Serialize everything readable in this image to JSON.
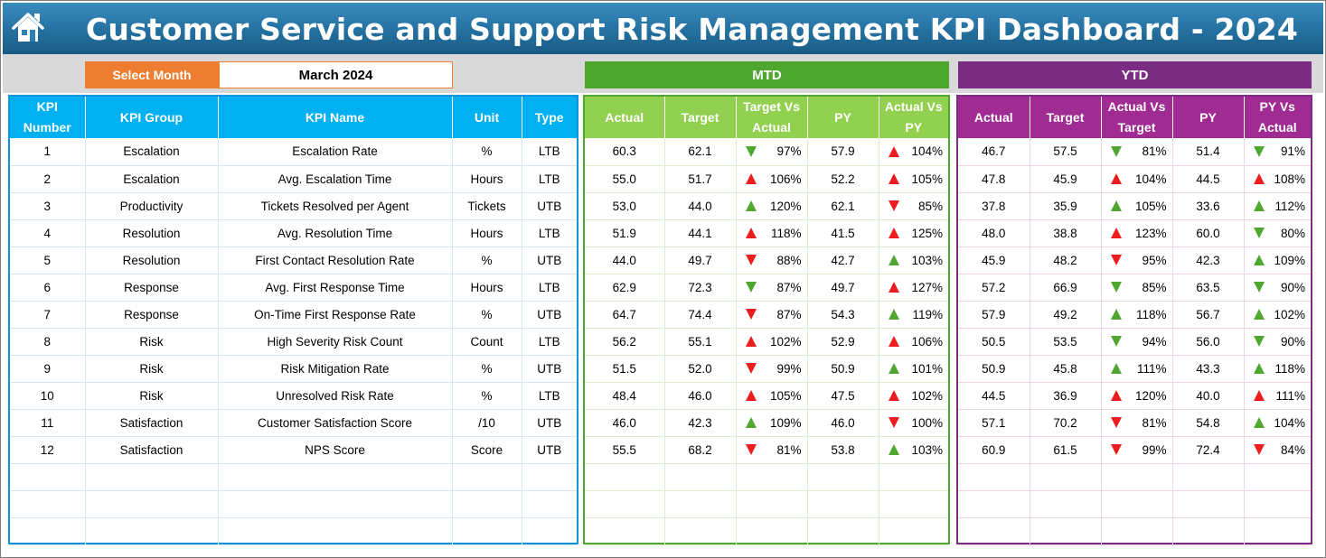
{
  "title": "Customer Service and Support Risk Management KPI Dashboard - 2024",
  "icons": {
    "home": "home-icon",
    "up": "triangle-up-icon",
    "down": "triangle-down-icon"
  },
  "colors": {
    "title_bar": "#24709f",
    "select_label": "#ed7d31",
    "kpi_header": "#00b0f0",
    "mtd_accent": "#4ea72e",
    "mtd_header": "#92d050",
    "ytd_accent": "#7b2d83",
    "ytd_header": "#a02b93",
    "indicator_red": "#ee1c1c",
    "indicator_green": "#4ea72e"
  },
  "controls": {
    "select_month_label": "Select Month",
    "month_value": "March 2024"
  },
  "sections": {
    "mtd": "MTD",
    "ytd": "YTD"
  },
  "kpi_headers": [
    "KPI Number",
    "KPI Group",
    "KPI Name",
    "Unit",
    "Type"
  ],
  "mtd_headers": [
    "Actual",
    "Target",
    "Target Vs Actual",
    "PY",
    "Actual Vs PY"
  ],
  "ytd_headers": [
    "Actual",
    "Target",
    "Actual Vs Target",
    "PY",
    "PY Vs Actual"
  ],
  "rows": [
    {
      "num": "1",
      "group": "Escalation",
      "name": "Escalation Rate",
      "unit": "%",
      "type": "LTB",
      "mtd": {
        "actual": "60.3",
        "target": "62.1",
        "tva": {
          "pct": "97%",
          "dir": "down",
          "good": true
        },
        "py": "57.9",
        "avp": {
          "pct": "104%",
          "dir": "up",
          "good": false
        }
      },
      "ytd": {
        "actual": "46.7",
        "target": "57.5",
        "avt": {
          "pct": "81%",
          "dir": "down",
          "good": true
        },
        "py": "51.4",
        "pva": {
          "pct": "91%",
          "dir": "down",
          "good": true
        }
      }
    },
    {
      "num": "2",
      "group": "Escalation",
      "name": "Avg. Escalation Time",
      "unit": "Hours",
      "type": "LTB",
      "mtd": {
        "actual": "55.0",
        "target": "51.7",
        "tva": {
          "pct": "106%",
          "dir": "up",
          "good": false
        },
        "py": "52.2",
        "avp": {
          "pct": "105%",
          "dir": "up",
          "good": false
        }
      },
      "ytd": {
        "actual": "47.8",
        "target": "45.9",
        "avt": {
          "pct": "104%",
          "dir": "up",
          "good": false
        },
        "py": "44.5",
        "pva": {
          "pct": "108%",
          "dir": "up",
          "good": false
        }
      }
    },
    {
      "num": "3",
      "group": "Productivity",
      "name": "Tickets Resolved per Agent",
      "unit": "Tickets",
      "type": "UTB",
      "mtd": {
        "actual": "53.0",
        "target": "44.0",
        "tva": {
          "pct": "120%",
          "dir": "up",
          "good": true
        },
        "py": "62.1",
        "avp": {
          "pct": "85%",
          "dir": "down",
          "good": false
        }
      },
      "ytd": {
        "actual": "37.8",
        "target": "35.9",
        "avt": {
          "pct": "105%",
          "dir": "up",
          "good": true
        },
        "py": "33.6",
        "pva": {
          "pct": "112%",
          "dir": "up",
          "good": true
        }
      }
    },
    {
      "num": "4",
      "group": "Resolution",
      "name": "Avg. Resolution Time",
      "unit": "Hours",
      "type": "LTB",
      "mtd": {
        "actual": "51.9",
        "target": "44.1",
        "tva": {
          "pct": "118%",
          "dir": "up",
          "good": false
        },
        "py": "41.5",
        "avp": {
          "pct": "125%",
          "dir": "up",
          "good": false
        }
      },
      "ytd": {
        "actual": "48.0",
        "target": "38.8",
        "avt": {
          "pct": "123%",
          "dir": "up",
          "good": false
        },
        "py": "60.0",
        "pva": {
          "pct": "80%",
          "dir": "down",
          "good": true
        }
      }
    },
    {
      "num": "5",
      "group": "Resolution",
      "name": "First Contact Resolution Rate",
      "unit": "%",
      "type": "UTB",
      "mtd": {
        "actual": "44.0",
        "target": "49.7",
        "tva": {
          "pct": "88%",
          "dir": "down",
          "good": false
        },
        "py": "42.7",
        "avp": {
          "pct": "103%",
          "dir": "up",
          "good": true
        }
      },
      "ytd": {
        "actual": "45.9",
        "target": "48.2",
        "avt": {
          "pct": "95%",
          "dir": "down",
          "good": false
        },
        "py": "42.3",
        "pva": {
          "pct": "109%",
          "dir": "up",
          "good": true
        }
      }
    },
    {
      "num": "6",
      "group": "Response",
      "name": "Avg. First Response Time",
      "unit": "Hours",
      "type": "LTB",
      "mtd": {
        "actual": "62.9",
        "target": "72.3",
        "tva": {
          "pct": "87%",
          "dir": "down",
          "good": true
        },
        "py": "49.7",
        "avp": {
          "pct": "127%",
          "dir": "up",
          "good": false
        }
      },
      "ytd": {
        "actual": "57.2",
        "target": "66.9",
        "avt": {
          "pct": "85%",
          "dir": "down",
          "good": true
        },
        "py": "63.5",
        "pva": {
          "pct": "90%",
          "dir": "down",
          "good": true
        }
      }
    },
    {
      "num": "7",
      "group": "Response",
      "name": "On-Time First Response Rate",
      "unit": "%",
      "type": "UTB",
      "mtd": {
        "actual": "64.7",
        "target": "74.4",
        "tva": {
          "pct": "87%",
          "dir": "down",
          "good": false
        },
        "py": "54.3",
        "avp": {
          "pct": "119%",
          "dir": "up",
          "good": true
        }
      },
      "ytd": {
        "actual": "57.9",
        "target": "49.2",
        "avt": {
          "pct": "118%",
          "dir": "up",
          "good": true
        },
        "py": "56.7",
        "pva": {
          "pct": "102%",
          "dir": "up",
          "good": true
        }
      }
    },
    {
      "num": "8",
      "group": "Risk",
      "name": "High Severity Risk Count",
      "unit": "Count",
      "type": "LTB",
      "mtd": {
        "actual": "56.2",
        "target": "55.1",
        "tva": {
          "pct": "102%",
          "dir": "up",
          "good": false
        },
        "py": "52.9",
        "avp": {
          "pct": "106%",
          "dir": "up",
          "good": false
        }
      },
      "ytd": {
        "actual": "50.5",
        "target": "53.5",
        "avt": {
          "pct": "94%",
          "dir": "down",
          "good": true
        },
        "py": "56.0",
        "pva": {
          "pct": "90%",
          "dir": "down",
          "good": true
        }
      }
    },
    {
      "num": "9",
      "group": "Risk",
      "name": "Risk Mitigation Rate",
      "unit": "%",
      "type": "UTB",
      "mtd": {
        "actual": "51.5",
        "target": "52.0",
        "tva": {
          "pct": "99%",
          "dir": "down",
          "good": false
        },
        "py": "50.9",
        "avp": {
          "pct": "101%",
          "dir": "up",
          "good": true
        }
      },
      "ytd": {
        "actual": "50.9",
        "target": "45.8",
        "avt": {
          "pct": "111%",
          "dir": "up",
          "good": true
        },
        "py": "43.3",
        "pva": {
          "pct": "118%",
          "dir": "up",
          "good": true
        }
      }
    },
    {
      "num": "10",
      "group": "Risk",
      "name": "Unresolved Risk Rate",
      "unit": "%",
      "type": "LTB",
      "mtd": {
        "actual": "48.4",
        "target": "46.0",
        "tva": {
          "pct": "105%",
          "dir": "up",
          "good": false
        },
        "py": "47.5",
        "avp": {
          "pct": "102%",
          "dir": "up",
          "good": false
        }
      },
      "ytd": {
        "actual": "44.5",
        "target": "36.9",
        "avt": {
          "pct": "120%",
          "dir": "up",
          "good": false
        },
        "py": "40.0",
        "pva": {
          "pct": "111%",
          "dir": "up",
          "good": false
        }
      }
    },
    {
      "num": "11",
      "group": "Satisfaction",
      "name": "Customer Satisfaction Score",
      "unit": "/10",
      "type": "UTB",
      "mtd": {
        "actual": "46.0",
        "target": "42.3",
        "tva": {
          "pct": "109%",
          "dir": "up",
          "good": true
        },
        "py": "46.0",
        "avp": {
          "pct": "100%",
          "dir": "down",
          "good": false
        }
      },
      "ytd": {
        "actual": "57.1",
        "target": "70.2",
        "avt": {
          "pct": "81%",
          "dir": "down",
          "good": false
        },
        "py": "54.8",
        "pva": {
          "pct": "104%",
          "dir": "up",
          "good": true
        }
      }
    },
    {
      "num": "12",
      "group": "Satisfaction",
      "name": "NPS Score",
      "unit": "Score",
      "type": "UTB",
      "mtd": {
        "actual": "55.5",
        "target": "68.2",
        "tva": {
          "pct": "81%",
          "dir": "down",
          "good": false
        },
        "py": "53.8",
        "avp": {
          "pct": "103%",
          "dir": "up",
          "good": true
        }
      },
      "ytd": {
        "actual": "60.9",
        "target": "61.5",
        "avt": {
          "pct": "99%",
          "dir": "down",
          "good": false
        },
        "py": "72.4",
        "pva": {
          "pct": "84%",
          "dir": "down",
          "good": false
        }
      }
    }
  ]
}
